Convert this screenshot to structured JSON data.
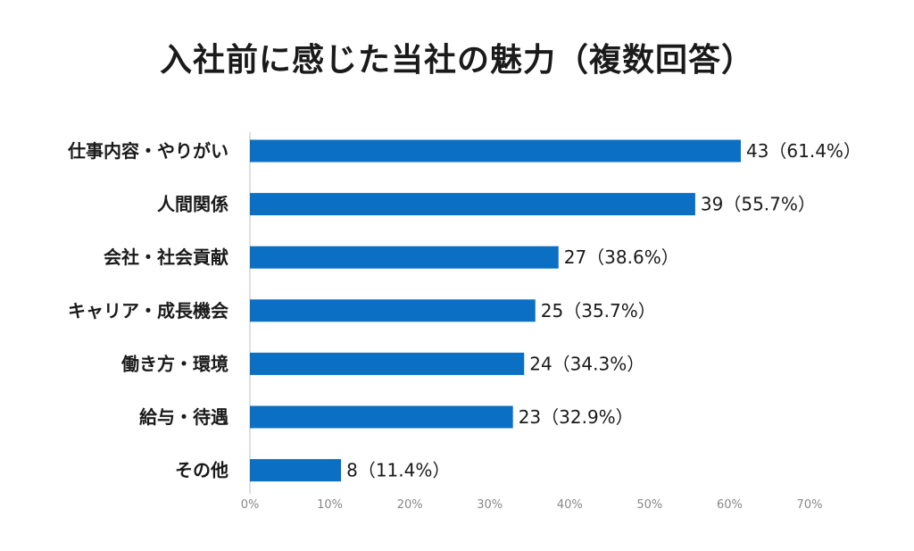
{
  "chart_data": {
    "type": "bar",
    "orientation": "horizontal",
    "title": "入社前に感じた当社の魅力（複数回答）",
    "categories": [
      "仕事内容・やりがい",
      "人間関係",
      "会社・社会貢献",
      "キャリア・成長機会",
      "働き方・環境",
      "給与・待遇",
      "その他"
    ],
    "values": [
      43,
      39,
      27,
      25,
      24,
      23,
      8
    ],
    "percents": [
      61.4,
      55.7,
      38.6,
      35.7,
      34.3,
      32.9,
      11.4
    ],
    "value_labels": [
      "43（61.4%）",
      "39（55.7%）",
      "27（38.6%）",
      "25（35.7%）",
      "24（34.3%）",
      "23（32.9%）",
      "8（11.4%）"
    ],
    "xlim": [
      0,
      70
    ],
    "x_ticks": [
      0,
      10,
      20,
      30,
      40,
      50,
      60,
      70
    ],
    "x_tick_labels": [
      "0%",
      "10%",
      "20%",
      "30%",
      "40%",
      "50%",
      "60%",
      "70%"
    ],
    "bar_color": "#0b6fc4",
    "grid": false,
    "legend": "none"
  }
}
